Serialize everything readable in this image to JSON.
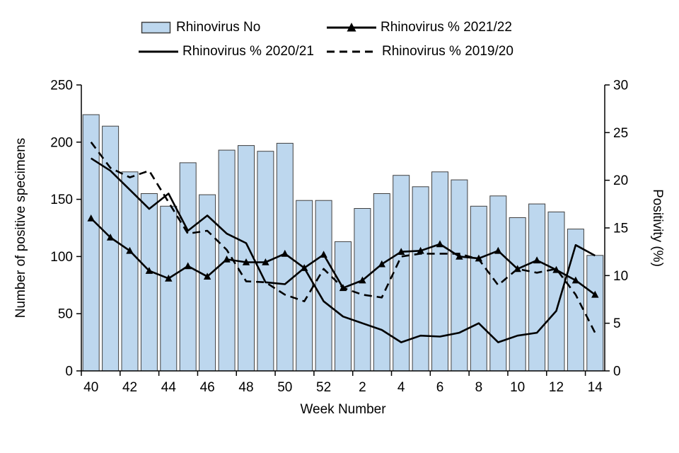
{
  "legend": {
    "items": [
      {
        "label": "Rhinovirus No",
        "swatch": "bar"
      },
      {
        "label": "Rhinovirus % 2021/22",
        "swatch": "line-triangle"
      },
      {
        "label": "Rhinovirus % 2020/21",
        "swatch": "line-solid"
      },
      {
        "label": "Rhinovirus % 2019/20",
        "swatch": "line-dashed"
      }
    ]
  },
  "chart_data": {
    "type": "combo",
    "categories": [
      "40",
      "41",
      "42",
      "43",
      "44",
      "45",
      "46",
      "47",
      "48",
      "49",
      "50",
      "51",
      "52",
      "1",
      "2",
      "3",
      "4",
      "5",
      "6",
      "7",
      "8",
      "9",
      "10",
      "11",
      "12",
      "13",
      "14"
    ],
    "bar_series": {
      "name": "Rhinovirus No",
      "axis": "left",
      "values": [
        224,
        214,
        174,
        155,
        144,
        182,
        154,
        193,
        197,
        192,
        199,
        149,
        149,
        113,
        142,
        155,
        171,
        161,
        174,
        167,
        144,
        153,
        134,
        146,
        139,
        124,
        101
      ]
    },
    "line_series": [
      {
        "name": "Rhinovirus % 2021/22",
        "style": "solid",
        "marker": "triangle",
        "axis": "right",
        "values": [
          16,
          14,
          12.6,
          10.5,
          9.7,
          11,
          9.9,
          11.7,
          11.4,
          11.4,
          12.3,
          10.8,
          12.2,
          8.7,
          9.5,
          11.2,
          12.5,
          12.6,
          13.3,
          12,
          11.8,
          12.6,
          10.7,
          11.6,
          10.6,
          9.5,
          8
        ]
      },
      {
        "name": "Rhinovirus % 2020/21",
        "style": "solid",
        "marker": "none",
        "axis": "right",
        "values": [
          22.3,
          21,
          19,
          17,
          18.6,
          14.7,
          16.3,
          14.4,
          13.4,
          9.3,
          9.1,
          10.8,
          7.3,
          5.7,
          5,
          4.3,
          3,
          3.7,
          3.6,
          4,
          5,
          3,
          3.7,
          4,
          6.3,
          13.2,
          12.1
        ]
      },
      {
        "name": "Rhinovirus % 2019/20",
        "style": "dashed",
        "marker": "none",
        "axis": "right",
        "values": [
          24,
          21.3,
          20.3,
          21,
          17.7,
          14.4,
          14.7,
          12.7,
          9.4,
          9.3,
          8,
          7.3,
          10.7,
          8.7,
          8,
          7.7,
          12,
          12.3,
          12.3,
          12.3,
          11.7,
          9,
          10.7,
          10.3,
          10.7,
          8,
          4
        ]
      }
    ],
    "left_axis": {
      "label": "Number of positive specimens",
      "min": 0,
      "max": 250,
      "step": 50
    },
    "right_axis": {
      "label": "Positivity (%)",
      "min": 0,
      "max": 30,
      "step": 5
    },
    "x_axis": {
      "label": "Week Number",
      "label_interval": 2
    },
    "colors": {
      "bar_fill": "#BDD7EE",
      "bar_border": "#404040",
      "line": "#000000"
    },
    "legend_position": "top",
    "grid": "off"
  }
}
